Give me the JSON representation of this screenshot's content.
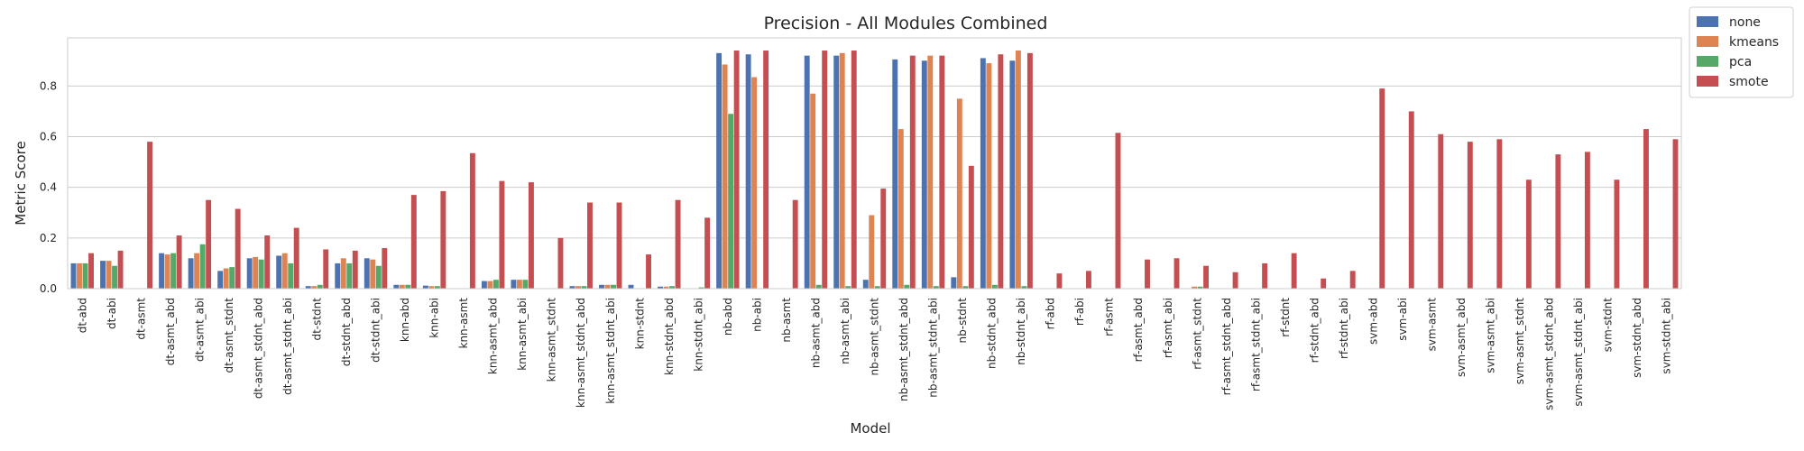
{
  "chart_data": {
    "type": "bar",
    "title": "Precision - All Modules Combined",
    "xlabel": "Model",
    "ylabel": "Metric Score",
    "ylim": [
      0,
      0.99
    ],
    "yticks": [
      0.0,
      0.2,
      0.4,
      0.6,
      0.8
    ],
    "ytick_labels": [
      "0.0",
      "0.2",
      "0.4",
      "0.6",
      "0.8"
    ],
    "grid": true,
    "legend_position": "outside-top-right",
    "categories": [
      "dt-abd",
      "dt-abi",
      "dt-asmt",
      "dt-asmt_abd",
      "dt-asmt_abi",
      "dt-asmt_stdnt",
      "dt-asmt_stdnt_abd",
      "dt-asmt_stdnt_abi",
      "dt-stdnt",
      "dt-stdnt_abd",
      "dt-stdnt_abi",
      "knn-abd",
      "knn-abi",
      "knn-asmt",
      "knn-asmt_abd",
      "knn-asmt_abi",
      "knn-asmt_stdnt",
      "knn-asmt_stdnt_abd",
      "knn-asmt_stdnt_abi",
      "knn-stdnt",
      "knn-stdnt_abd",
      "knn-stdnt_abi",
      "nb-abd",
      "nb-abi",
      "nb-asmt",
      "nb-asmt_abd",
      "nb-asmt_abi",
      "nb-asmt_stdnt",
      "nb-asmt_stdnt_abd",
      "nb-asmt_stdnt_abi",
      "nb-stdnt",
      "nb-stdnt_abd",
      "nb-stdnt_abi",
      "rf-abd",
      "rf-abi",
      "rf-asmt",
      "rf-asmt_abd",
      "rf-asmt_abi",
      "rf-asmt_stdnt",
      "rf-asmt_stdnt_abd",
      "rf-asmt_stdnt_abi",
      "rf-stdnt",
      "rf-stdnt_abd",
      "rf-stdnt_abi",
      "svm-abd",
      "svm-abi",
      "svm-asmt",
      "svm-asmt_abd",
      "svm-asmt_abi",
      "svm-asmt_stdnt",
      "svm-asmt_stdnt_abd",
      "svm-asmt_stdnt_abi",
      "svm-stdnt",
      "svm-stdnt_abd",
      "svm-stdnt_abi"
    ],
    "series": [
      {
        "name": "none",
        "color": "#4c72b0",
        "values": [
          0.1,
          0.11,
          0,
          0.14,
          0.12,
          0.07,
          0.12,
          0.13,
          0.01,
          0.1,
          0.12,
          0.015,
          0.012,
          0,
          0.03,
          0.035,
          0,
          0.01,
          0.015,
          0.015,
          0.008,
          0,
          0.93,
          0.925,
          0,
          0.92,
          0.92,
          0.035,
          0.905,
          0.9,
          0.045,
          0.91,
          0.9,
          0,
          0,
          0,
          0,
          0,
          0,
          0,
          0,
          0,
          0,
          0,
          0,
          0,
          0,
          0,
          0,
          0,
          0,
          0,
          0,
          0,
          0
        ]
      },
      {
        "name": "kmeans",
        "color": "#dd8452",
        "values": [
          0.1,
          0.11,
          0,
          0.135,
          0.14,
          0.08,
          0.125,
          0.14,
          0.01,
          0.12,
          0.115,
          0.015,
          0.01,
          0,
          0.03,
          0.035,
          0,
          0.01,
          0.015,
          0,
          0.008,
          0,
          0.885,
          0.835,
          0,
          0.77,
          0.93,
          0.29,
          0.63,
          0.92,
          0.75,
          0.89,
          0.94,
          0,
          0,
          0,
          0,
          0,
          0.008,
          0,
          0,
          0,
          0,
          0,
          0,
          0,
          0,
          0,
          0,
          0,
          0,
          0,
          0,
          0,
          0
        ]
      },
      {
        "name": "pca",
        "color": "#55a868",
        "values": [
          0.1,
          0.09,
          0,
          0.14,
          0.175,
          0.085,
          0.115,
          0.1,
          0.015,
          0.1,
          0.09,
          0.015,
          0.01,
          0,
          0.035,
          0.035,
          0,
          0.01,
          0.015,
          0,
          0.01,
          0.005,
          0.69,
          0,
          0,
          0.015,
          0.01,
          0.01,
          0.015,
          0.01,
          0.01,
          0.015,
          0.01,
          0,
          0,
          0,
          0,
          0,
          0.008,
          0,
          0,
          0,
          0,
          0,
          0,
          0,
          0,
          0,
          0,
          0,
          0,
          0,
          0,
          0,
          0
        ]
      },
      {
        "name": "smote",
        "color": "#c44e52",
        "values": [
          0.14,
          0.15,
          0.58,
          0.21,
          0.35,
          0.315,
          0.21,
          0.24,
          0.155,
          0.15,
          0.16,
          0.37,
          0.385,
          0.535,
          0.425,
          0.42,
          0.2,
          0.34,
          0.34,
          0.135,
          0.35,
          0.28,
          0.94,
          0.94,
          0.35,
          0.94,
          0.94,
          0.395,
          0.92,
          0.92,
          0.485,
          0.925,
          0.93,
          0.06,
          0.07,
          0.615,
          0.115,
          0.12,
          0.09,
          0.065,
          0.1,
          0.14,
          0.04,
          0.07,
          0.79,
          0.7,
          0.61,
          0.58,
          0.59,
          0.43,
          0.53,
          0.54,
          0.43,
          0.63,
          0.59
        ]
      }
    ]
  }
}
